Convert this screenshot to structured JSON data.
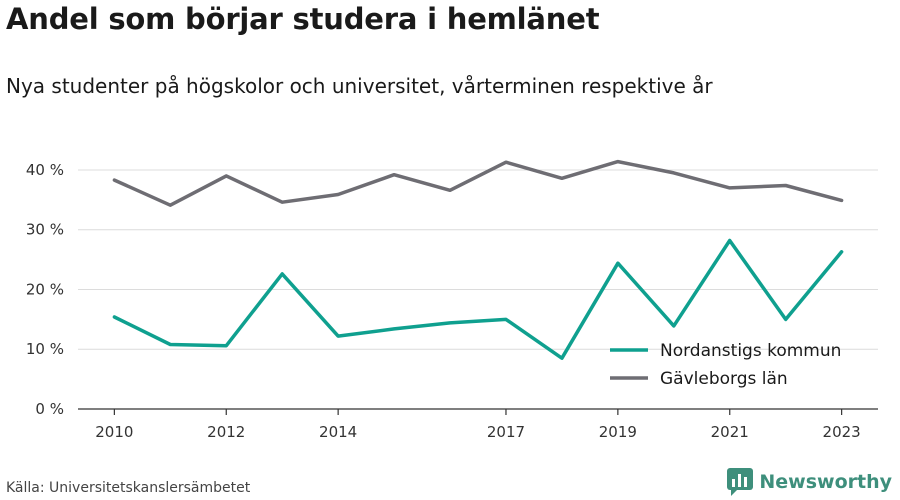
{
  "title": "Andel som börjar studera i hemlänet",
  "subtitle": "Nya studenter på högskolor och universitet, vårterminen respektive år",
  "source": "Källa: Universitetskanslersämbetet",
  "brand": {
    "name": "Newsworthy",
    "icon": "bar-chart-logo-icon",
    "color": "#3e8f7c"
  },
  "chart_data": {
    "type": "line",
    "x": [
      2010,
      2011,
      2012,
      2013,
      2014,
      2015,
      2016,
      2017,
      2018,
      2019,
      2020,
      2021,
      2022,
      2023
    ],
    "x_tick_labels": [
      "2010",
      "2012",
      "2014",
      "2017",
      "2019",
      "2021",
      "2023"
    ],
    "x_tick_values": [
      2010,
      2012,
      2014,
      2017,
      2019,
      2021,
      2023
    ],
    "y_tick_labels": [
      "0 %",
      "10 %",
      "20 %",
      "30 %",
      "40 %"
    ],
    "y_tick_values": [
      0,
      10,
      20,
      30,
      40
    ],
    "ylim": [
      0,
      42
    ],
    "grid": true,
    "legend_position": "bottom-right",
    "series": [
      {
        "name": "Nordanstigs kommun",
        "color": "#0fa08f",
        "values": [
          15.4,
          10.8,
          10.6,
          22.6,
          12.2,
          13.4,
          14.4,
          15.0,
          8.5,
          24.4,
          13.9,
          28.2,
          15.0,
          26.3
        ]
      },
      {
        "name": "Gävleborgs län",
        "color": "#6e6d73",
        "values": [
          38.3,
          34.1,
          39.0,
          34.6,
          35.9,
          39.2,
          36.6,
          41.3,
          38.6,
          41.4,
          39.5,
          37.0,
          37.4,
          34.9
        ]
      }
    ]
  }
}
